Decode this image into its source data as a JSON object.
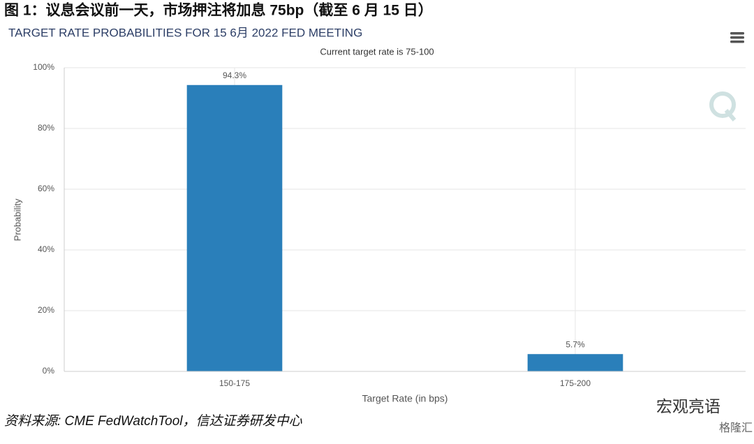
{
  "figure_title": "图 1：议息会议前一天，市场押注将加息 75bp（截至 6 月 15 日）",
  "source": "资料来源: CME FedWatchTool，信达证券研发中心",
  "watermark": {
    "account": "宏观亮语",
    "site": "格隆汇"
  },
  "chart_data": {
    "type": "bar",
    "title": "TARGET RATE PROBABILITIES FOR 15 6月 2022 FED MEETING",
    "subtitle": "Current target rate is 75-100",
    "x_label": "Target Rate (in bps)",
    "y_label": "Probability",
    "categories": [
      "150-175",
      "175-200"
    ],
    "values": [
      94.3,
      5.7
    ],
    "value_labels": [
      "94.3%",
      "5.7%"
    ],
    "color": "#2a7fba",
    "ylim": [
      0,
      100
    ],
    "yticks": [
      {
        "value": 0,
        "label": "0%"
      },
      {
        "value": 20,
        "label": "20%"
      },
      {
        "value": 40,
        "label": "40%"
      },
      {
        "value": 60,
        "label": "60%"
      },
      {
        "value": 80,
        "label": "80%"
      },
      {
        "value": 100,
        "label": "100%"
      }
    ],
    "grid": true
  }
}
